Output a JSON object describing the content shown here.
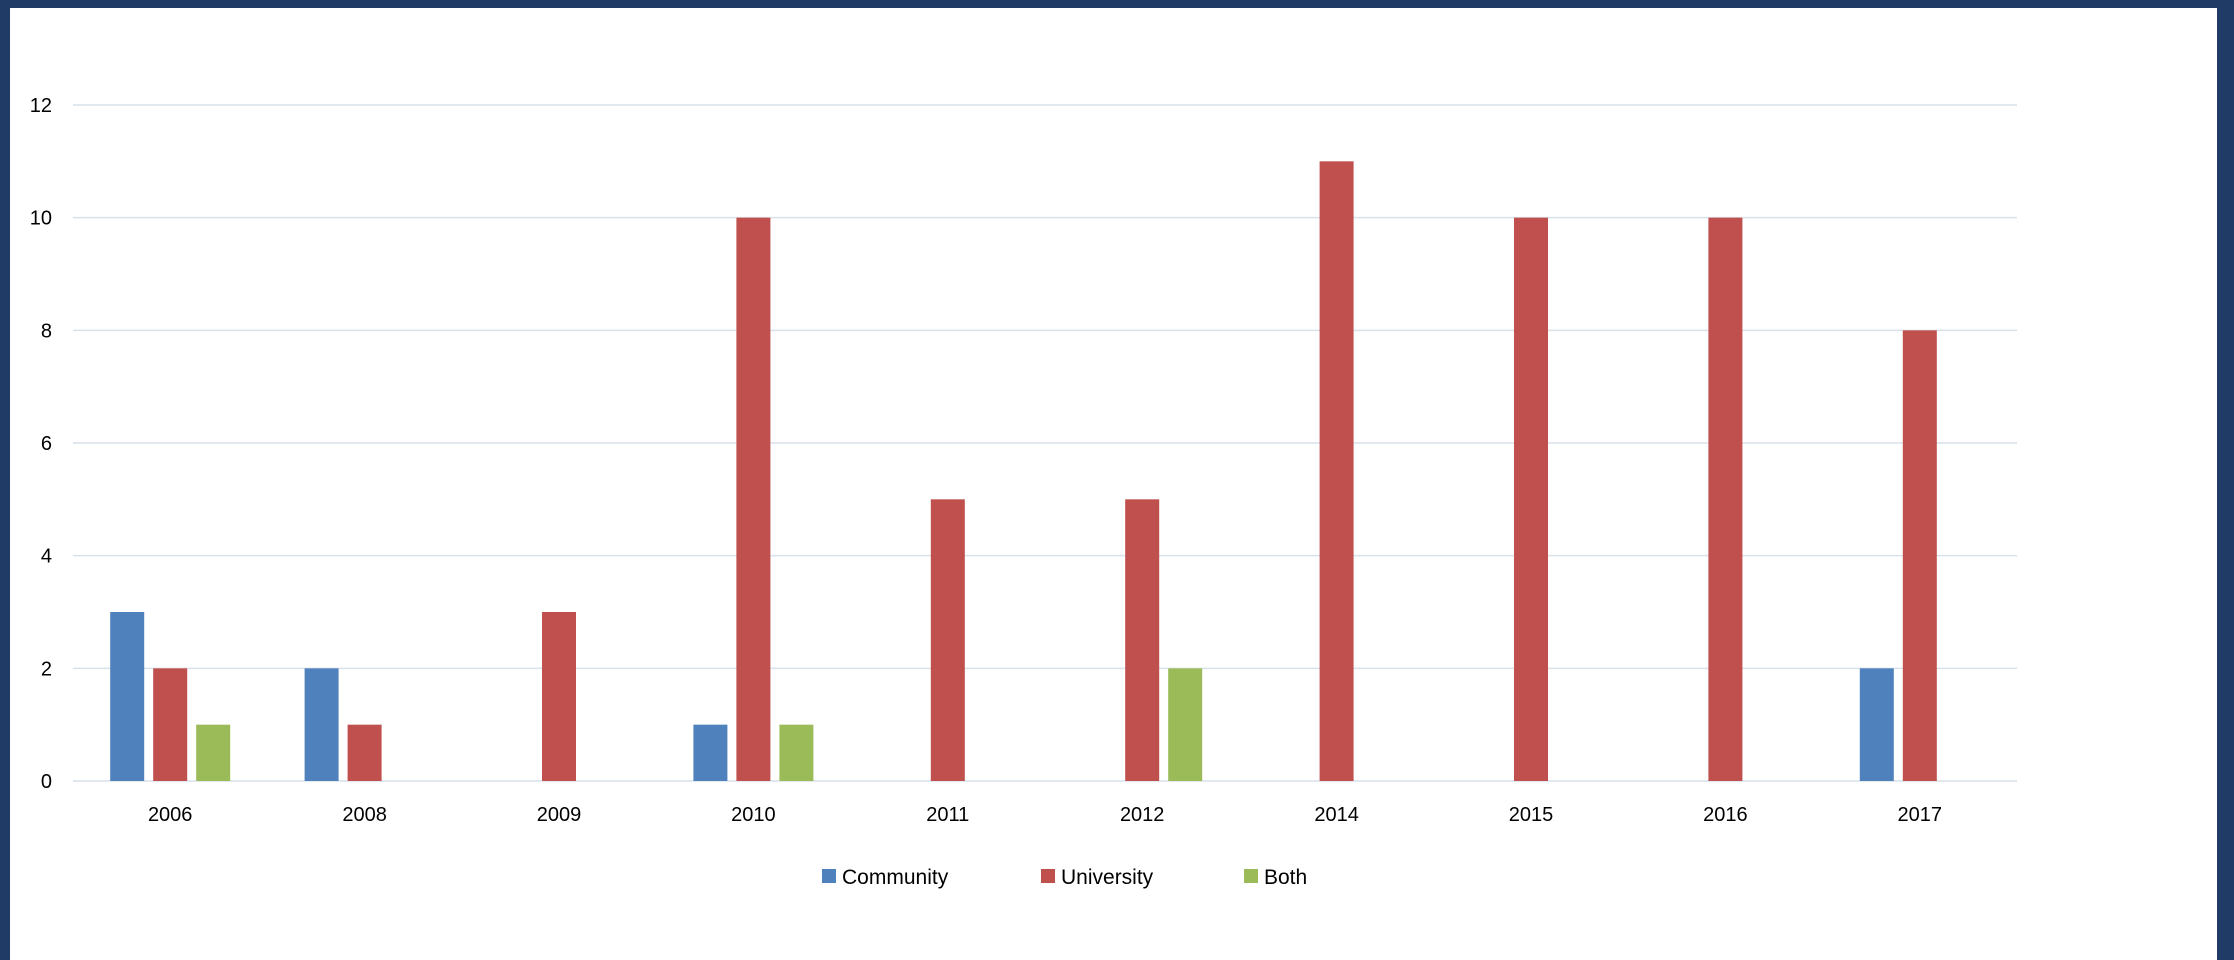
{
  "chart_data": {
    "type": "bar",
    "title": "",
    "xlabel": "",
    "ylabel": "",
    "categories": [
      "2006",
      "2008",
      "2009",
      "2010",
      "2011",
      "2012",
      "2014",
      "2015",
      "2016",
      "2017"
    ],
    "series": [
      {
        "name": "Community",
        "color": "#4f81bd",
        "values": [
          3,
          2,
          0,
          1,
          0,
          0,
          0,
          0,
          0,
          2
        ]
      },
      {
        "name": "University",
        "color": "#c0504d",
        "values": [
          2,
          1,
          3,
          10,
          5,
          5,
          11,
          10,
          10,
          8
        ]
      },
      {
        "name": "Both",
        "color": "#9bbb59",
        "values": [
          1,
          0,
          0,
          1,
          0,
          2,
          0,
          0,
          0,
          0
        ]
      }
    ],
    "ylim": [
      0,
      12
    ],
    "yticks": [
      0,
      2,
      4,
      6,
      8,
      10,
      12
    ],
    "grid": true,
    "legend": "bottom"
  },
  "colors": {
    "background": "#1f3b66",
    "panel": "#ffffff",
    "gridline": "#d9e1ea"
  }
}
